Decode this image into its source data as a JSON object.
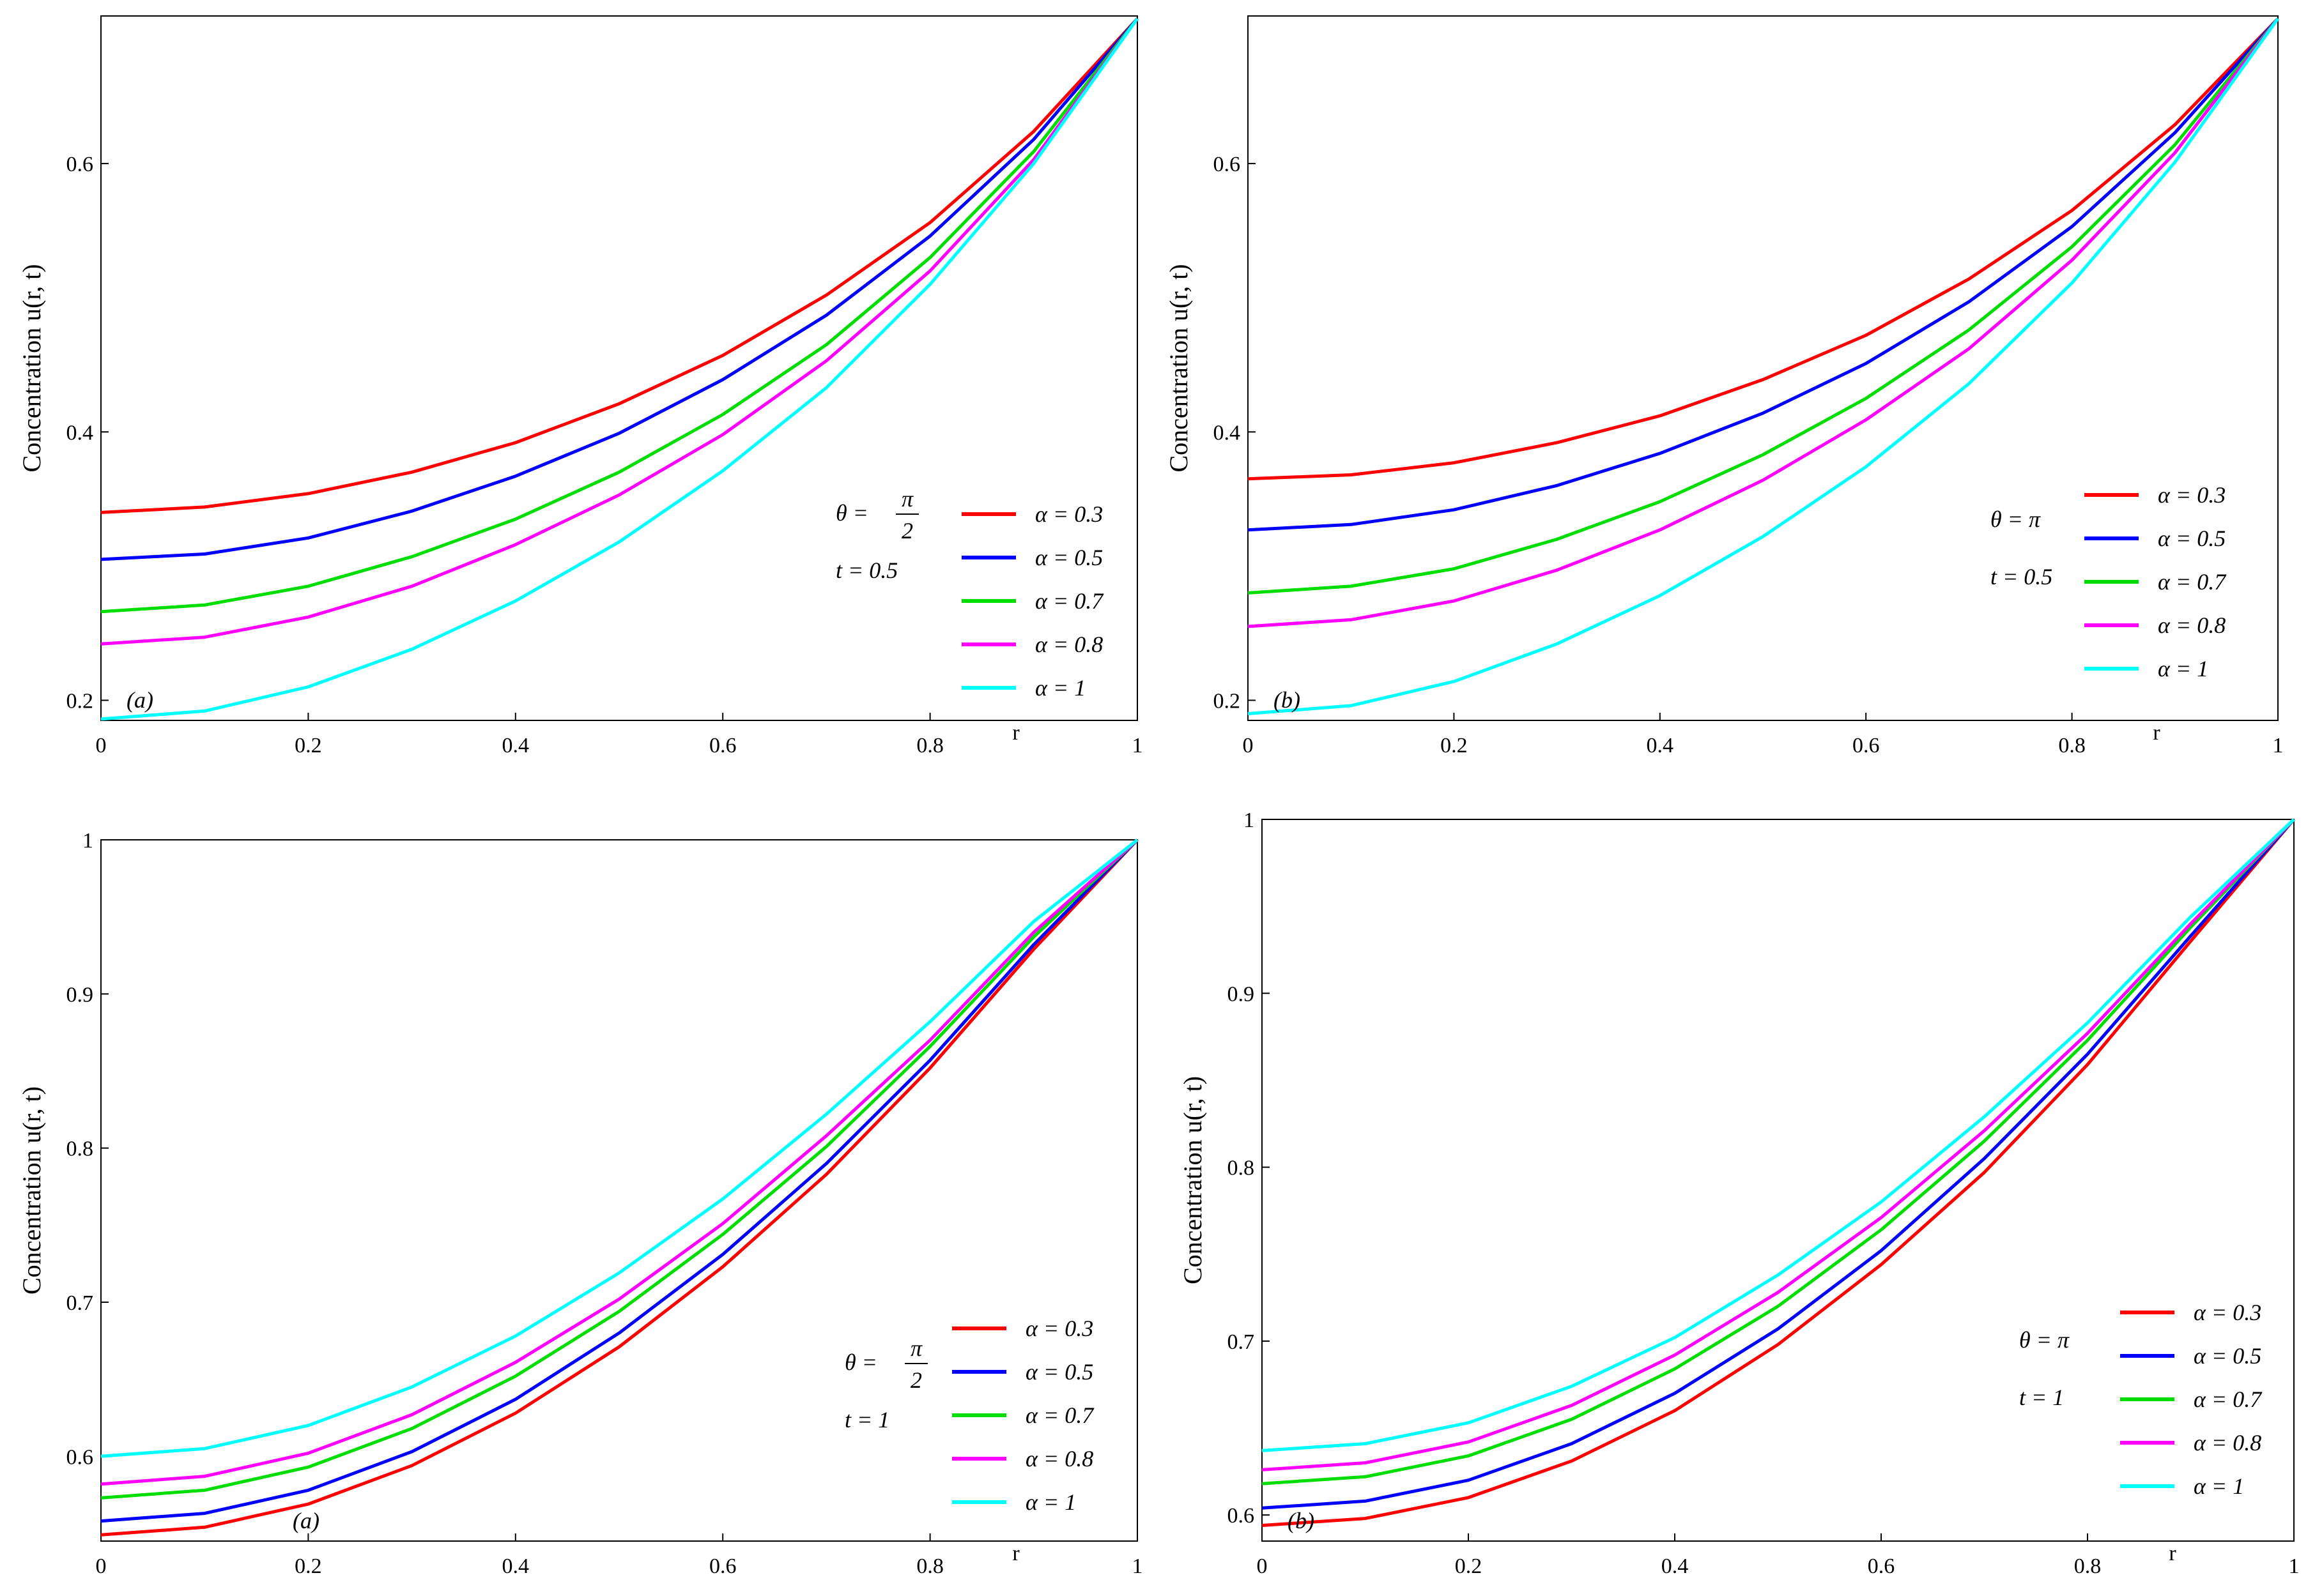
{
  "chart_data": [
    {
      "type": "line",
      "panel_label": "(a)",
      "ylabel": "Concentration u(r, t)",
      "xlabel": "r",
      "xlim": [
        0,
        1
      ],
      "ylim": [
        0.185,
        0.71
      ],
      "x_ticks": [
        "0",
        "0.2",
        "0.4",
        "0.6",
        "0.8",
        "1"
      ],
      "y_ticks": [
        {
          "value": 0.2,
          "label": "0.2"
        },
        {
          "value": 0.4,
          "label": "0.4"
        },
        {
          "value": 0.6,
          "label": "0.6"
        }
      ],
      "annotation": {
        "theta_label": "θ =",
        "theta_num": "π",
        "theta_den": "2",
        "t_label": "t = 0.5"
      },
      "x": [
        0,
        0.1,
        0.2,
        0.3,
        0.4,
        0.5,
        0.6,
        0.7,
        0.8,
        0.9,
        1.0
      ],
      "series": [
        {
          "name": "α = 0.3",
          "color": "#ff0000",
          "values": [
            0.34,
            0.344,
            0.354,
            0.37,
            0.392,
            0.421,
            0.457,
            0.502,
            0.556,
            0.624,
            0.708
          ]
        },
        {
          "name": "α = 0.5",
          "color": "#0000ff",
          "values": [
            0.305,
            0.309,
            0.321,
            0.341,
            0.367,
            0.399,
            0.439,
            0.487,
            0.546,
            0.618,
            0.708
          ]
        },
        {
          "name": "α = 0.7",
          "color": "#00dd00",
          "values": [
            0.266,
            0.271,
            0.285,
            0.307,
            0.335,
            0.37,
            0.413,
            0.465,
            0.53,
            0.609,
            0.708
          ]
        },
        {
          "name": "α = 0.8",
          "color": "#ff00ff",
          "values": [
            0.242,
            0.247,
            0.262,
            0.285,
            0.316,
            0.353,
            0.398,
            0.453,
            0.52,
            0.603,
            0.708
          ]
        },
        {
          "name": "α = 1",
          "color": "#00ffff",
          "values": [
            0.186,
            0.192,
            0.21,
            0.238,
            0.274,
            0.318,
            0.371,
            0.433,
            0.51,
            0.6,
            0.708
          ]
        }
      ]
    },
    {
      "type": "line",
      "panel_label": "(b)",
      "ylabel": "Concentration u(r, t)",
      "xlabel": "r",
      "xlim": [
        0,
        1
      ],
      "ylim": [
        0.185,
        0.71
      ],
      "x_ticks": [
        "0",
        "0.2",
        "0.4",
        "0.6",
        "0.8",
        "1"
      ],
      "y_ticks": [
        {
          "value": 0.2,
          "label": "0.2"
        },
        {
          "value": 0.4,
          "label": "0.4"
        },
        {
          "value": 0.6,
          "label": "0.6"
        }
      ],
      "annotation": {
        "theta_label": "θ = π",
        "theta_num": "",
        "theta_den": "",
        "t_label": "t = 0.5"
      },
      "x": [
        0,
        0.1,
        0.2,
        0.3,
        0.4,
        0.5,
        0.6,
        0.7,
        0.8,
        0.9,
        1.0
      ],
      "series": [
        {
          "name": "α = 0.3",
          "color": "#ff0000",
          "values": [
            0.365,
            0.368,
            0.377,
            0.392,
            0.412,
            0.439,
            0.472,
            0.514,
            0.565,
            0.629,
            0.708
          ]
        },
        {
          "name": "α = 0.5",
          "color": "#0000ff",
          "values": [
            0.327,
            0.331,
            0.342,
            0.36,
            0.384,
            0.414,
            0.451,
            0.497,
            0.553,
            0.623,
            0.708
          ]
        },
        {
          "name": "α = 0.7",
          "color": "#00dd00",
          "values": [
            0.28,
            0.285,
            0.298,
            0.32,
            0.348,
            0.383,
            0.425,
            0.476,
            0.538,
            0.614,
            0.708
          ]
        },
        {
          "name": "α = 0.8",
          "color": "#ff00ff",
          "values": [
            0.255,
            0.26,
            0.274,
            0.297,
            0.327,
            0.364,
            0.409,
            0.462,
            0.528,
            0.608,
            0.708
          ]
        },
        {
          "name": "α = 1",
          "color": "#00ffff",
          "values": [
            0.19,
            0.196,
            0.214,
            0.242,
            0.278,
            0.322,
            0.374,
            0.436,
            0.511,
            0.601,
            0.708
          ]
        }
      ]
    },
    {
      "type": "line",
      "panel_label": "(a)",
      "ylabel": "Concentration u(r, t)",
      "xlabel": "r",
      "xlim": [
        0,
        1
      ],
      "ylim": [
        0.545,
        1.0
      ],
      "x_ticks": [
        "0",
        "0.2",
        "0.4",
        "0.6",
        "0.8",
        "1"
      ],
      "y_ticks": [
        {
          "value": 0.6,
          "label": "0.6"
        },
        {
          "value": 0.7,
          "label": "0.7"
        },
        {
          "value": 0.8,
          "label": "0.8"
        },
        {
          "value": 0.9,
          "label": "0.9"
        },
        {
          "value": 1.0,
          "label": "1"
        }
      ],
      "annotation": {
        "theta_label": "θ =",
        "theta_num": "π",
        "theta_den": "2",
        "t_label": "t = 1"
      },
      "x": [
        0,
        0.1,
        0.2,
        0.3,
        0.4,
        0.5,
        0.6,
        0.7,
        0.8,
        0.9,
        1.0
      ],
      "series": [
        {
          "name": "α = 0.3",
          "color": "#ff0000",
          "values": [
            0.549,
            0.554,
            0.569,
            0.594,
            0.628,
            0.671,
            0.723,
            0.783,
            0.852,
            0.929,
            1.0
          ]
        },
        {
          "name": "α = 0.5",
          "color": "#0000ff",
          "values": [
            0.558,
            0.563,
            0.578,
            0.603,
            0.637,
            0.68,
            0.731,
            0.79,
            0.857,
            0.932,
            1.0
          ]
        },
        {
          "name": "α = 0.7",
          "color": "#00dd00",
          "values": [
            0.573,
            0.578,
            0.593,
            0.618,
            0.652,
            0.694,
            0.744,
            0.801,
            0.866,
            0.937,
            1.0
          ]
        },
        {
          "name": "α = 0.8",
          "color": "#ff00ff",
          "values": [
            0.582,
            0.587,
            0.602,
            0.627,
            0.661,
            0.702,
            0.751,
            0.808,
            0.87,
            0.94,
            1.0
          ]
        },
        {
          "name": "α = 1",
          "color": "#00ffff",
          "values": [
            0.6,
            0.605,
            0.62,
            0.645,
            0.678,
            0.719,
            0.767,
            0.822,
            0.882,
            0.947,
            1.0
          ]
        }
      ]
    },
    {
      "type": "line",
      "panel_label": "(b)",
      "ylabel": "Concentration u(r, t)",
      "xlabel": "r",
      "xlim": [
        0,
        1
      ],
      "ylim": [
        0.585,
        1.0
      ],
      "x_ticks": [
        "0",
        "0.2",
        "0.4",
        "0.6",
        "0.8",
        "1"
      ],
      "y_ticks": [
        {
          "value": 0.6,
          "label": "0.6"
        },
        {
          "value": 0.7,
          "label": "0.7"
        },
        {
          "value": 0.8,
          "label": "0.8"
        },
        {
          "value": 0.9,
          "label": "0.9"
        },
        {
          "value": 1.0,
          "label": "1"
        }
      ],
      "annotation": {
        "theta_label": "θ = π",
        "theta_num": "",
        "theta_den": "",
        "t_label": "t = 1"
      },
      "x": [
        0,
        0.1,
        0.2,
        0.3,
        0.4,
        0.5,
        0.6,
        0.7,
        0.8,
        0.9,
        1.0
      ],
      "series": [
        {
          "name": "α = 0.3",
          "color": "#ff0000",
          "values": [
            0.594,
            0.598,
            0.61,
            0.631,
            0.66,
            0.698,
            0.744,
            0.797,
            0.859,
            0.93,
            1.0
          ]
        },
        {
          "name": "α = 0.5",
          "color": "#0000ff",
          "values": [
            0.604,
            0.608,
            0.62,
            0.641,
            0.67,
            0.707,
            0.752,
            0.805,
            0.865,
            0.933,
            1.0
          ]
        },
        {
          "name": "α = 0.7",
          "color": "#00dd00",
          "values": [
            0.618,
            0.622,
            0.634,
            0.655,
            0.684,
            0.72,
            0.764,
            0.815,
            0.873,
            0.938,
            1.0
          ]
        },
        {
          "name": "α = 0.8",
          "color": "#ff00ff",
          "values": [
            0.626,
            0.63,
            0.642,
            0.663,
            0.692,
            0.728,
            0.771,
            0.821,
            0.877,
            0.94,
            1.0
          ]
        },
        {
          "name": "α = 1",
          "color": "#00ffff",
          "values": [
            0.637,
            0.641,
            0.653,
            0.674,
            0.702,
            0.738,
            0.78,
            0.829,
            0.883,
            0.944,
            1.0
          ]
        }
      ]
    }
  ]
}
